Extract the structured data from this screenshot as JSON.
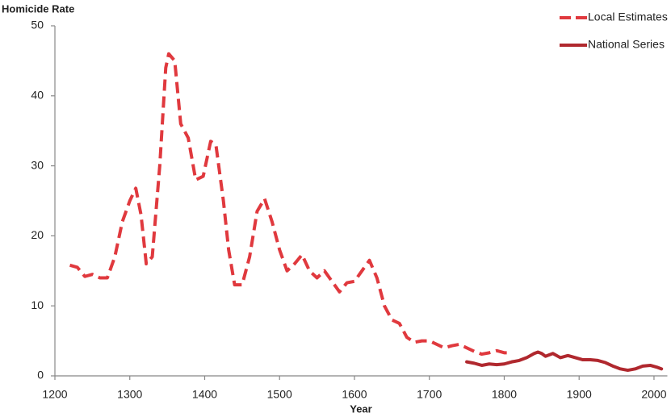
{
  "chart_data": {
    "type": "line",
    "y_label": "Homicide Rate",
    "x_label": "Year",
    "xlim": [
      1200,
      2020
    ],
    "xticks": [
      1200,
      1300,
      1400,
      1500,
      1600,
      1700,
      1800,
      1900,
      2000
    ],
    "ylim": [
      0,
      50
    ],
    "yticks": [
      0,
      10,
      20,
      30,
      40,
      50
    ],
    "grid": false,
    "legend": "upper right",
    "series": [
      {
        "name": "Local Estimates",
        "color": "#e0393e",
        "style": "dashed",
        "x": [
          1220,
          1230,
          1240,
          1250,
          1260,
          1270,
          1280,
          1290,
          1300,
          1308,
          1315,
          1322,
          1330,
          1340,
          1348,
          1352,
          1360,
          1368,
          1378,
          1388,
          1398,
          1408,
          1415,
          1425,
          1432,
          1440,
          1450,
          1460,
          1470,
          1480,
          1490,
          1500,
          1510,
          1520,
          1530,
          1540,
          1550,
          1560,
          1570,
          1580,
          1590,
          1600,
          1610,
          1620,
          1630,
          1640,
          1650,
          1660,
          1670,
          1680,
          1690,
          1700,
          1710,
          1720,
          1730,
          1740,
          1750,
          1760,
          1770,
          1780,
          1790,
          1800,
          1805
        ],
        "values": [
          15.8,
          15.5,
          14.2,
          14.5,
          14,
          14,
          17,
          22,
          25,
          26.8,
          23,
          16,
          17,
          30,
          44,
          46,
          45,
          36,
          34,
          28,
          28.5,
          33.5,
          33,
          25,
          18,
          13,
          13,
          17,
          23.5,
          25.3,
          22,
          18,
          15,
          16,
          17.3,
          15,
          14,
          15,
          13.5,
          12,
          13.3,
          13.5,
          15,
          16.5,
          14,
          10,
          8,
          7.5,
          5.5,
          4.8,
          5,
          5,
          4.5,
          4,
          4.3,
          4.5,
          4,
          3.5,
          3.1,
          3.3,
          3.6,
          3.3,
          3.3
        ]
      },
      {
        "name": "National Series",
        "color": "#b0282e",
        "style": "solid",
        "x": [
          1750,
          1760,
          1770,
          1780,
          1790,
          1800,
          1810,
          1820,
          1830,
          1840,
          1845,
          1850,
          1855,
          1865,
          1875,
          1885,
          1895,
          1905,
          1915,
          1925,
          1935,
          1945,
          1955,
          1965,
          1975,
          1985,
          1995,
          2005,
          2010
        ],
        "values": [
          2,
          1.8,
          1.5,
          1.7,
          1.6,
          1.7,
          2,
          2.2,
          2.6,
          3.2,
          3.4,
          3.2,
          2.8,
          3.2,
          2.6,
          2.9,
          2.6,
          2.3,
          2.3,
          2.2,
          1.9,
          1.4,
          1.0,
          0.8,
          1.0,
          1.4,
          1.5,
          1.2,
          1.0
        ]
      }
    ]
  }
}
